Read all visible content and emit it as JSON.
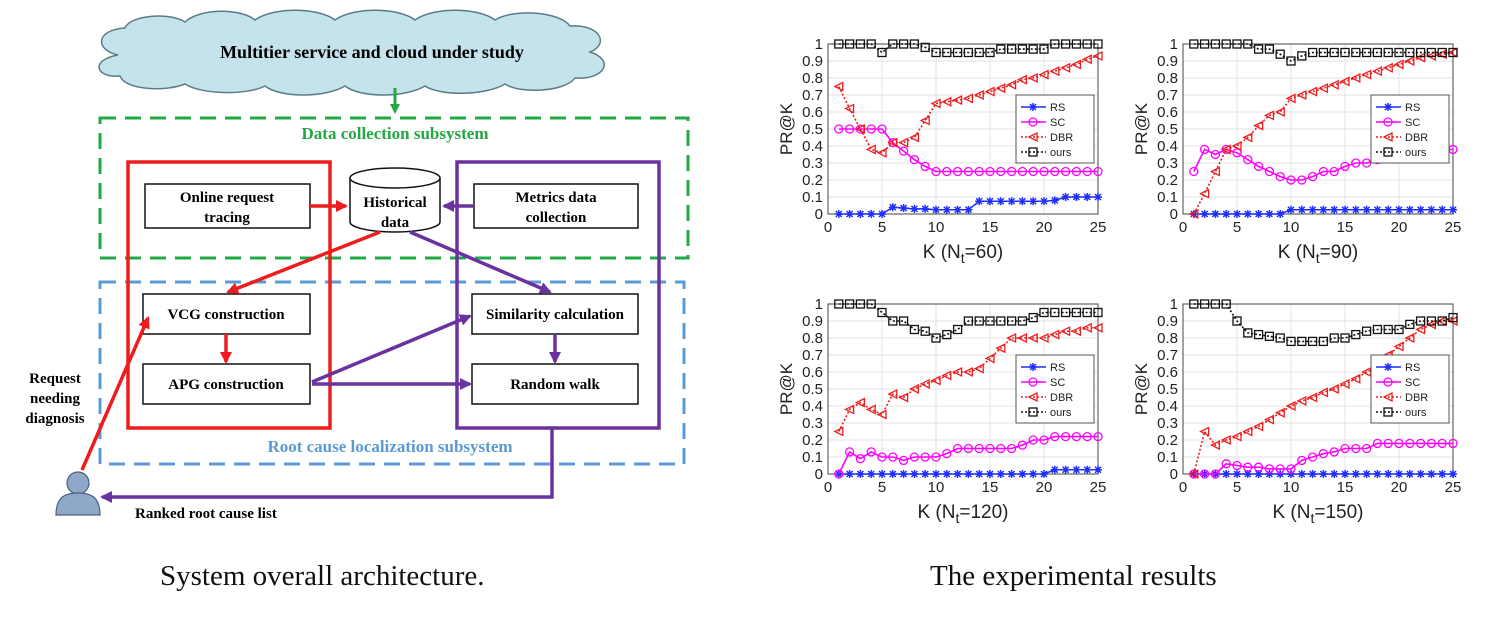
{
  "diagram": {
    "cloud_label": "Multitier service and cloud under study",
    "data_collection_label": "Data collection subsystem",
    "root_cause_label": "Root cause localization subsystem",
    "boxes": {
      "online_tracing": [
        "Online request",
        "tracing"
      ],
      "historical": [
        "Historical",
        "data"
      ],
      "metrics": [
        "Metrics data",
        "collection"
      ],
      "vcg": "VCG construction",
      "apg": "APG construction",
      "similarity": "Similarity calculation",
      "random_walk": "Random walk"
    },
    "user_label": [
      "Request",
      "needing",
      "diagnosis"
    ],
    "ranked_label": "Ranked root cause list",
    "colors": {
      "green": "#22a844",
      "red": "#ee1c1c",
      "purple": "#6a329f",
      "blue": "#5b9bd5",
      "cloud": "#c5e3ea",
      "user": "#8fa8c8"
    }
  },
  "captions": {
    "left": "System overall architecture.",
    "right": "The experimental results"
  },
  "chart_data": [
    {
      "type": "line",
      "xlabel": "K (N",
      "xlabel_sub": "t",
      "xlabel_tail": "=60)",
      "ylabel": "PR@K",
      "xlim": [
        0,
        25
      ],
      "ylim": [
        0,
        1
      ],
      "xticks": [
        0,
        5,
        10,
        15,
        20,
        25
      ],
      "yticks": [
        0,
        0.1,
        0.2,
        0.3,
        0.4,
        0.5,
        0.6,
        0.7,
        0.8,
        0.9,
        1
      ],
      "grid": true,
      "legend": "right-middle",
      "x": [
        1,
        2,
        3,
        4,
        5,
        6,
        7,
        8,
        9,
        10,
        11,
        12,
        13,
        14,
        15,
        16,
        17,
        18,
        19,
        20,
        21,
        22,
        23,
        24,
        25
      ],
      "series": [
        {
          "name": "RS",
          "color": "#1f2fff",
          "marker": "star",
          "dash": "solid",
          "values": [
            0,
            0,
            0,
            0,
            0,
            0.04,
            0.035,
            0.03,
            0.03,
            0.025,
            0.025,
            0.025,
            0.025,
            0.075,
            0.075,
            0.075,
            0.075,
            0.075,
            0.075,
            0.075,
            0.08,
            0.1,
            0.1,
            0.1,
            0.1
          ]
        },
        {
          "name": "SC",
          "color": "#ff00ff",
          "marker": "circle",
          "dash": "solid",
          "values": [
            0.5,
            0.5,
            0.5,
            0.5,
            0.5,
            0.42,
            0.37,
            0.32,
            0.28,
            0.25,
            0.25,
            0.25,
            0.25,
            0.25,
            0.25,
            0.25,
            0.25,
            0.25,
            0.25,
            0.25,
            0.25,
            0.25,
            0.25,
            0.25,
            0.25
          ]
        },
        {
          "name": "DBR",
          "color": "#ee1c1c",
          "marker": "triangle",
          "dash": "dotted",
          "values": [
            0.75,
            0.62,
            0.5,
            0.38,
            0.36,
            0.42,
            0.42,
            0.45,
            0.55,
            0.65,
            0.66,
            0.67,
            0.68,
            0.7,
            0.72,
            0.74,
            0.76,
            0.79,
            0.8,
            0.82,
            0.84,
            0.86,
            0.88,
            0.91,
            0.93
          ]
        },
        {
          "name": "ours",
          "color": "#111111",
          "marker": "square",
          "dash": "dotted",
          "values": [
            1,
            1,
            1,
            1,
            0.95,
            1,
            1,
            1,
            0.98,
            0.95,
            0.95,
            0.95,
            0.95,
            0.95,
            0.95,
            0.97,
            0.97,
            0.97,
            0.97,
            0.97,
            1,
            1,
            1,
            1,
            1
          ]
        }
      ]
    },
    {
      "type": "line",
      "xlabel": "K (N",
      "xlabel_sub": "t",
      "xlabel_tail": "=90)",
      "ylabel": "PR@K",
      "xlim": [
        0,
        25
      ],
      "ylim": [
        0,
        1
      ],
      "xticks": [
        0,
        5,
        10,
        15,
        20,
        25
      ],
      "yticks": [
        0,
        0.1,
        0.2,
        0.3,
        0.4,
        0.5,
        0.6,
        0.7,
        0.8,
        0.9,
        1
      ],
      "grid": true,
      "legend": "right-middle",
      "x": [
        1,
        2,
        3,
        4,
        5,
        6,
        7,
        8,
        9,
        10,
        11,
        12,
        13,
        14,
        15,
        16,
        17,
        18,
        19,
        20,
        21,
        22,
        23,
        24,
        25
      ],
      "series": [
        {
          "name": "RS",
          "color": "#1f2fff",
          "marker": "star",
          "dash": "solid",
          "values": [
            0,
            0,
            0,
            0,
            0,
            0,
            0,
            0,
            0,
            0.025,
            0.025,
            0.025,
            0.025,
            0.025,
            0.025,
            0.025,
            0.025,
            0.025,
            0.025,
            0.025,
            0.025,
            0.025,
            0.025,
            0.025,
            0.025
          ]
        },
        {
          "name": "SC",
          "color": "#ff00ff",
          "marker": "circle",
          "dash": "solid",
          "values": [
            0.25,
            0.38,
            0.35,
            0.38,
            0.36,
            0.32,
            0.28,
            0.25,
            0.22,
            0.2,
            0.2,
            0.22,
            0.25,
            0.25,
            0.28,
            0.3,
            0.3,
            0.32,
            0.35,
            0.35,
            0.35,
            0.35,
            0.36,
            0.38,
            0.38
          ]
        },
        {
          "name": "DBR",
          "color": "#ee1c1c",
          "marker": "triangle",
          "dash": "dotted",
          "values": [
            0,
            0.12,
            0.25,
            0.38,
            0.4,
            0.45,
            0.52,
            0.58,
            0.6,
            0.68,
            0.7,
            0.72,
            0.74,
            0.76,
            0.78,
            0.8,
            0.82,
            0.84,
            0.86,
            0.88,
            0.9,
            0.92,
            0.93,
            0.94,
            0.95
          ]
        },
        {
          "name": "ours",
          "color": "#111111",
          "marker": "square",
          "dash": "dotted",
          "values": [
            1,
            1,
            1,
            1,
            1,
            1,
            0.97,
            0.97,
            0.94,
            0.9,
            0.93,
            0.95,
            0.95,
            0.95,
            0.95,
            0.95,
            0.95,
            0.95,
            0.95,
            0.95,
            0.95,
            0.95,
            0.95,
            0.95,
            0.95
          ]
        }
      ]
    },
    {
      "type": "line",
      "xlabel": "K (N",
      "xlabel_sub": "t",
      "xlabel_tail": "=120)",
      "ylabel": "PR@K",
      "xlim": [
        0,
        25
      ],
      "ylim": [
        0,
        1
      ],
      "xticks": [
        0,
        5,
        10,
        15,
        20,
        25
      ],
      "yticks": [
        0,
        0.1,
        0.2,
        0.3,
        0.4,
        0.5,
        0.6,
        0.7,
        0.8,
        0.9,
        1
      ],
      "grid": true,
      "legend": "right-middle",
      "x": [
        1,
        2,
        3,
        4,
        5,
        6,
        7,
        8,
        9,
        10,
        11,
        12,
        13,
        14,
        15,
        16,
        17,
        18,
        19,
        20,
        21,
        22,
        23,
        24,
        25
      ],
      "series": [
        {
          "name": "RS",
          "color": "#1f2fff",
          "marker": "star",
          "dash": "solid",
          "values": [
            0,
            0,
            0,
            0,
            0,
            0,
            0,
            0,
            0,
            0,
            0,
            0,
            0,
            0,
            0,
            0,
            0,
            0,
            0,
            0,
            0.025,
            0.025,
            0.025,
            0.025,
            0.025
          ]
        },
        {
          "name": "SC",
          "color": "#ff00ff",
          "marker": "circle",
          "dash": "solid",
          "values": [
            0,
            0.13,
            0.09,
            0.13,
            0.1,
            0.1,
            0.08,
            0.1,
            0.1,
            0.1,
            0.12,
            0.15,
            0.15,
            0.15,
            0.15,
            0.15,
            0.15,
            0.17,
            0.2,
            0.2,
            0.22,
            0.22,
            0.22,
            0.22,
            0.22
          ]
        },
        {
          "name": "DBR",
          "color": "#ee1c1c",
          "marker": "triangle",
          "dash": "dotted",
          "values": [
            0.25,
            0.38,
            0.42,
            0.38,
            0.35,
            0.47,
            0.45,
            0.5,
            0.53,
            0.55,
            0.58,
            0.6,
            0.6,
            0.62,
            0.68,
            0.74,
            0.8,
            0.8,
            0.8,
            0.8,
            0.82,
            0.84,
            0.84,
            0.86,
            0.86
          ]
        },
        {
          "name": "ours",
          "color": "#111111",
          "marker": "square",
          "dash": "dotted",
          "values": [
            1,
            1,
            1,
            1,
            0.95,
            0.9,
            0.9,
            0.85,
            0.84,
            0.8,
            0.82,
            0.85,
            0.9,
            0.9,
            0.9,
            0.9,
            0.9,
            0.9,
            0.92,
            0.95,
            0.95,
            0.95,
            0.95,
            0.95,
            0.95
          ]
        }
      ]
    },
    {
      "type": "line",
      "xlabel": "K (N",
      "xlabel_sub": "t",
      "xlabel_tail": "=150)",
      "ylabel": "PR@K",
      "xlim": [
        0,
        25
      ],
      "ylim": [
        0,
        1
      ],
      "xticks": [
        0,
        5,
        10,
        15,
        20,
        25
      ],
      "yticks": [
        0,
        0.1,
        0.2,
        0.3,
        0.4,
        0.5,
        0.6,
        0.7,
        0.8,
        0.9,
        1
      ],
      "grid": true,
      "legend": "right-middle",
      "x": [
        1,
        2,
        3,
        4,
        5,
        6,
        7,
        8,
        9,
        10,
        11,
        12,
        13,
        14,
        15,
        16,
        17,
        18,
        19,
        20,
        21,
        22,
        23,
        24,
        25
      ],
      "series": [
        {
          "name": "RS",
          "color": "#1f2fff",
          "marker": "star",
          "dash": "solid",
          "values": [
            0,
            0,
            0,
            0,
            0,
            0,
            0,
            0,
            0,
            0,
            0,
            0,
            0,
            0,
            0,
            0,
            0,
            0,
            0,
            0,
            0,
            0,
            0,
            0,
            0
          ]
        },
        {
          "name": "SC",
          "color": "#ff00ff",
          "marker": "circle",
          "dash": "solid",
          "values": [
            0,
            0,
            0,
            0.06,
            0.05,
            0.04,
            0.04,
            0.03,
            0.03,
            0.03,
            0.08,
            0.1,
            0.12,
            0.13,
            0.15,
            0.15,
            0.15,
            0.18,
            0.18,
            0.18,
            0.18,
            0.18,
            0.18,
            0.18,
            0.18
          ]
        },
        {
          "name": "DBR",
          "color": "#ee1c1c",
          "marker": "triangle",
          "dash": "dotted",
          "values": [
            0,
            0.25,
            0.17,
            0.2,
            0.22,
            0.25,
            0.28,
            0.32,
            0.36,
            0.4,
            0.43,
            0.45,
            0.48,
            0.5,
            0.53,
            0.56,
            0.6,
            0.63,
            0.7,
            0.75,
            0.8,
            0.85,
            0.88,
            0.9,
            0.9
          ]
        },
        {
          "name": "ours",
          "color": "#111111",
          "marker": "square",
          "dash": "dotted",
          "values": [
            1,
            1,
            1,
            1,
            0.9,
            0.83,
            0.82,
            0.81,
            0.8,
            0.78,
            0.78,
            0.78,
            0.78,
            0.8,
            0.8,
            0.82,
            0.84,
            0.85,
            0.85,
            0.85,
            0.88,
            0.9,
            0.9,
            0.9,
            0.92
          ]
        }
      ]
    }
  ]
}
